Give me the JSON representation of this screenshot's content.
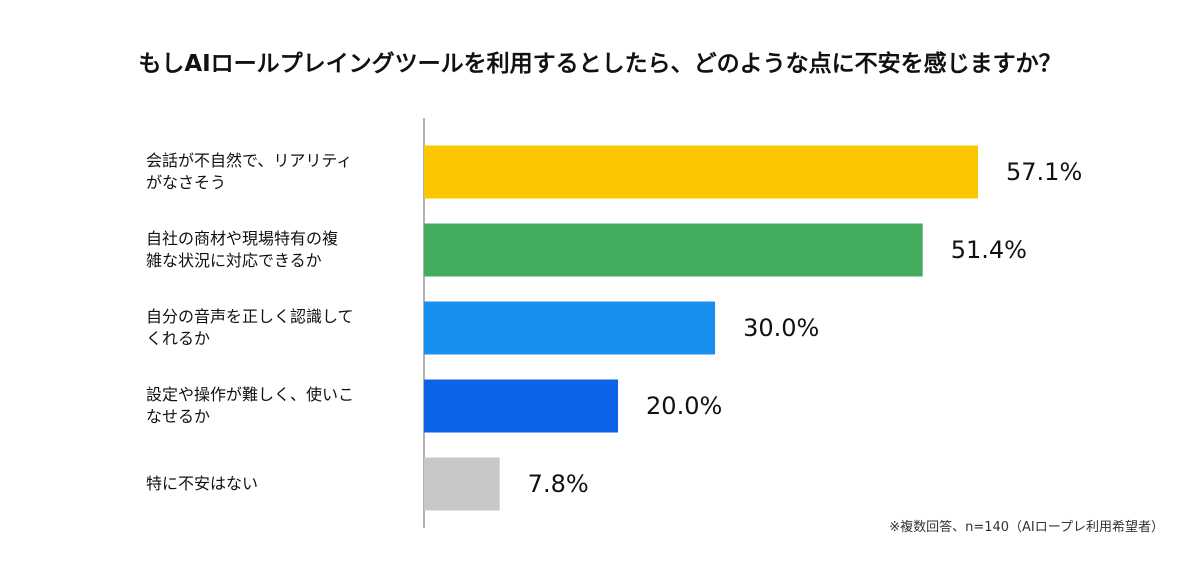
{
  "chart_data": {
    "type": "bar",
    "orientation": "horizontal",
    "title": "もしAIロールプレイングツールを利用するとしたら、どのような点に不安を感じますか？",
    "categories": [
      "会話が不自然で、リアリティ\nがなさそう",
      "自社の商材や現場特有の複\n雑な状況に対応できるか",
      "自分の音声を正しく認識して\nくれるか",
      "設定や操作が難しく、使いこ\nなせるか",
      "特に不安はない"
    ],
    "values": [
      57.1,
      51.4,
      30.0,
      20.0,
      7.8
    ],
    "value_labels": [
      "57.1%",
      "51.4%",
      "30.0%",
      "20.0%",
      "7.8%"
    ],
    "colors": [
      "#fbc600",
      "#43ac5c",
      "#1a8ff2",
      "#0b64e6",
      "#c8c8c8"
    ],
    "note": "※複数回答、n=140（AIロープレ利用希望者）"
  }
}
